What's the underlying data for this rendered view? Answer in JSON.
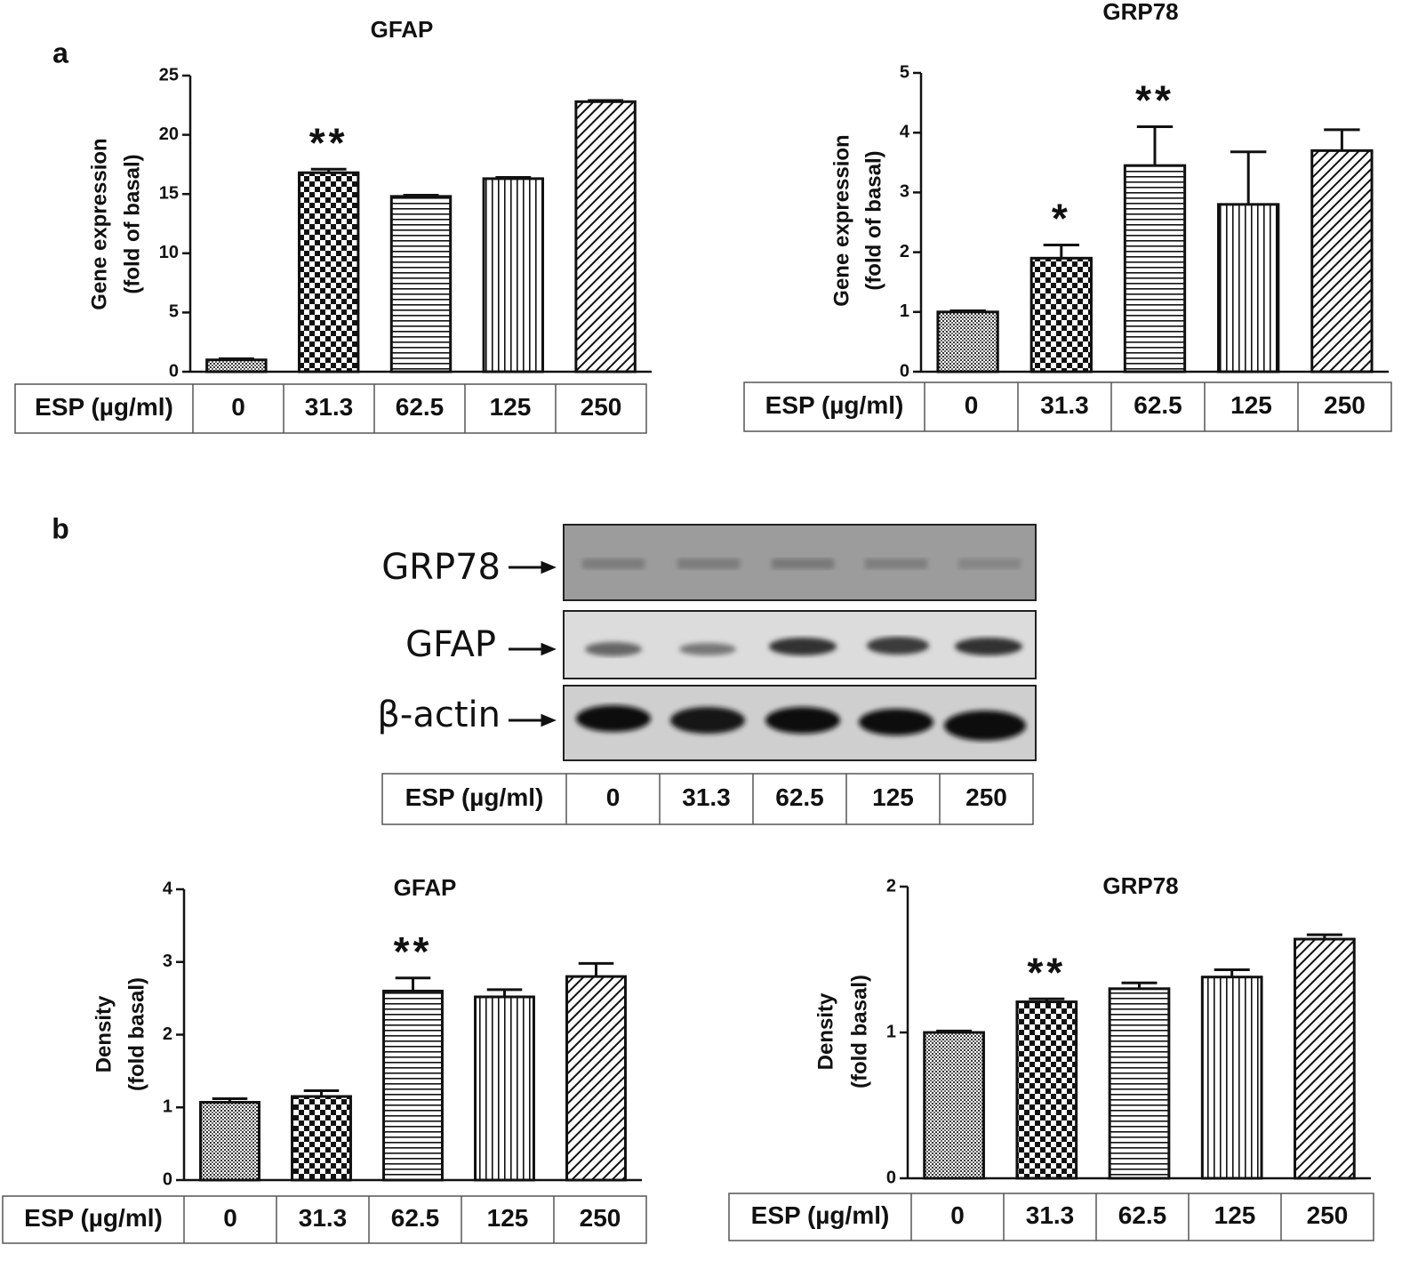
{
  "panels": [
    "a",
    "b"
  ],
  "blot": {
    "rows": [
      "GRP78",
      "GFAP",
      "β-actin"
    ],
    "table_label": "ESP (µg/ml)",
    "lanes": [
      "0",
      "31.3",
      "62.5",
      "125",
      "250"
    ]
  },
  "chart_data": [
    {
      "type": "bar",
      "title": "GFAP",
      "ylabel": [
        "Gene expression",
        "(fold of basal)"
      ],
      "table_label": "ESP (µg/ml)",
      "categories": [
        "0",
        "31.3",
        "62.5",
        "125",
        "250"
      ],
      "values": [
        1.0,
        16.8,
        14.8,
        16.3,
        22.8
      ],
      "errors": [
        0.1,
        0.3,
        0.1,
        0.1,
        0.1
      ],
      "annotations": [
        null,
        "**",
        null,
        null,
        null
      ],
      "patterns": [
        "dots",
        "checker",
        "hlines",
        "vlines",
        "diagonal"
      ],
      "ylim": [
        0,
        25
      ],
      "yticks": [
        0,
        5,
        10,
        15,
        20,
        25
      ]
    },
    {
      "type": "bar",
      "title": "GRP78",
      "ylabel": [
        "Gene expression",
        "(fold of basal)"
      ],
      "table_label": "ESP (µg/ml)",
      "categories": [
        "0",
        "31.3",
        "62.5",
        "125",
        "250"
      ],
      "values": [
        1.0,
        1.9,
        3.45,
        2.8,
        3.7
      ],
      "errors": [
        0.02,
        0.22,
        0.65,
        0.88,
        0.35
      ],
      "annotations": [
        null,
        "*",
        "**",
        null,
        null
      ],
      "patterns": [
        "dots",
        "checker",
        "hlines",
        "vlines",
        "diagonal"
      ],
      "ylim": [
        0,
        5
      ],
      "yticks": [
        0,
        1,
        2,
        3,
        4,
        5
      ]
    },
    {
      "type": "bar",
      "title": "GFAP",
      "ylabel": [
        "Density",
        "(fold basal)"
      ],
      "table_label": "ESP (µg/ml)",
      "categories": [
        "0",
        "31.3",
        "62.5",
        "125",
        "250"
      ],
      "values": [
        1.07,
        1.15,
        2.6,
        2.52,
        2.8
      ],
      "errors": [
        0.05,
        0.08,
        0.18,
        0.1,
        0.18
      ],
      "annotations": [
        null,
        null,
        "**",
        null,
        null
      ],
      "patterns": [
        "dots",
        "checker",
        "hlines",
        "vlines",
        "diagonal"
      ],
      "ylim": [
        0,
        4
      ],
      "yticks": [
        0,
        1,
        2,
        3,
        4
      ]
    },
    {
      "type": "bar",
      "title": "GRP78",
      "ylabel": [
        "Density",
        "(fold basal)"
      ],
      "table_label": "ESP (µg/ml)",
      "categories": [
        "0",
        "31.3",
        "62.5",
        "125",
        "250"
      ],
      "values": [
        1.0,
        1.21,
        1.3,
        1.38,
        1.64
      ],
      "errors": [
        0.01,
        0.02,
        0.04,
        0.05,
        0.03
      ],
      "annotations": [
        null,
        "**",
        null,
        null,
        null
      ],
      "patterns": [
        "dots",
        "checker",
        "hlines",
        "vlines",
        "diagonal"
      ],
      "ylim": [
        0,
        2
      ],
      "yticks": [
        0,
        1,
        2
      ]
    }
  ]
}
